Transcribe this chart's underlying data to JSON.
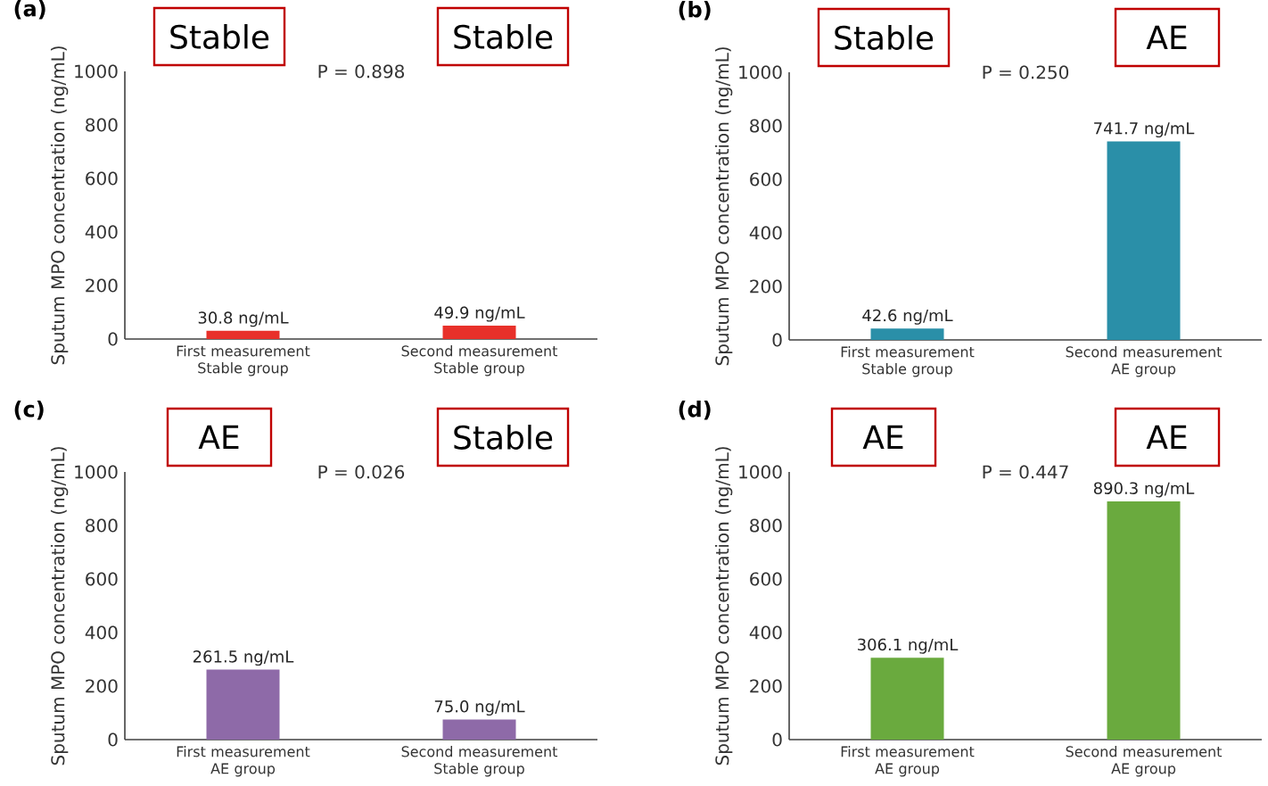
{
  "chart_data": [
    {
      "type": "bar",
      "title": "(a)",
      "ylabel": "Sputum MPO concentration  (ng/mL)",
      "categories": [
        "First measurement Stable group",
        "Second measurement Stable group"
      ],
      "values": [
        30.8,
        49.9
      ],
      "color": "#e8302a",
      "ylim": [
        0,
        1000
      ],
      "yticks": [
        0,
        200,
        400,
        600,
        800,
        1000
      ],
      "data_labels": true,
      "value_labels": [
        "30.8 ng/mL",
        "49.9 ng/mL"
      ],
      "annotations": [
        "Stable",
        "P = 0.898",
        "Stable"
      ]
    },
    {
      "type": "bar",
      "title": "(b)",
      "ylabel": "Sputum MPO concentration  (ng/mL)",
      "categories": [
        "First measurement Stable group",
        "Second measurement AE group"
      ],
      "values": [
        42.6,
        741.7
      ],
      "color": "#2a8fa8",
      "ylim": [
        0,
        1000
      ],
      "yticks": [
        0,
        200,
        400,
        600,
        800,
        1000
      ],
      "data_labels": true,
      "value_labels": [
        "42.6 ng/mL",
        "741.7 ng/mL"
      ],
      "annotations": [
        "Stable",
        "P = 0.250",
        "AE"
      ]
    },
    {
      "type": "bar",
      "title": "(c)",
      "ylabel": "Sputum MPO concentration  (ng/mL)",
      "categories": [
        "First measurement AE group",
        "Second measurement Stable group"
      ],
      "values": [
        261.5,
        75.0
      ],
      "color": "#8e6aa8",
      "ylim": [
        0,
        1000
      ],
      "yticks": [
        0,
        200,
        400,
        600,
        800,
        1000
      ],
      "data_labels": true,
      "value_labels": [
        "261.5 ng/mL",
        "75.0 ng/mL"
      ],
      "annotations": [
        "AE",
        "P = 0.026",
        "Stable"
      ]
    },
    {
      "type": "bar",
      "title": "(d)",
      "ylabel": "Sputum MPO concentration  (ng/mL)",
      "categories": [
        "First measurement AE group",
        "Second measurement AE group"
      ],
      "values": [
        306.1,
        890.3
      ],
      "color": "#6aaa3e",
      "ylim": [
        0,
        1000
      ],
      "yticks": [
        0,
        200,
        400,
        600,
        800,
        1000
      ],
      "data_labels": true,
      "value_labels": [
        "306.1 ng/mL",
        "890.3 ng/mL"
      ],
      "annotations": [
        "AE",
        "P = 0.447",
        "AE"
      ]
    }
  ]
}
